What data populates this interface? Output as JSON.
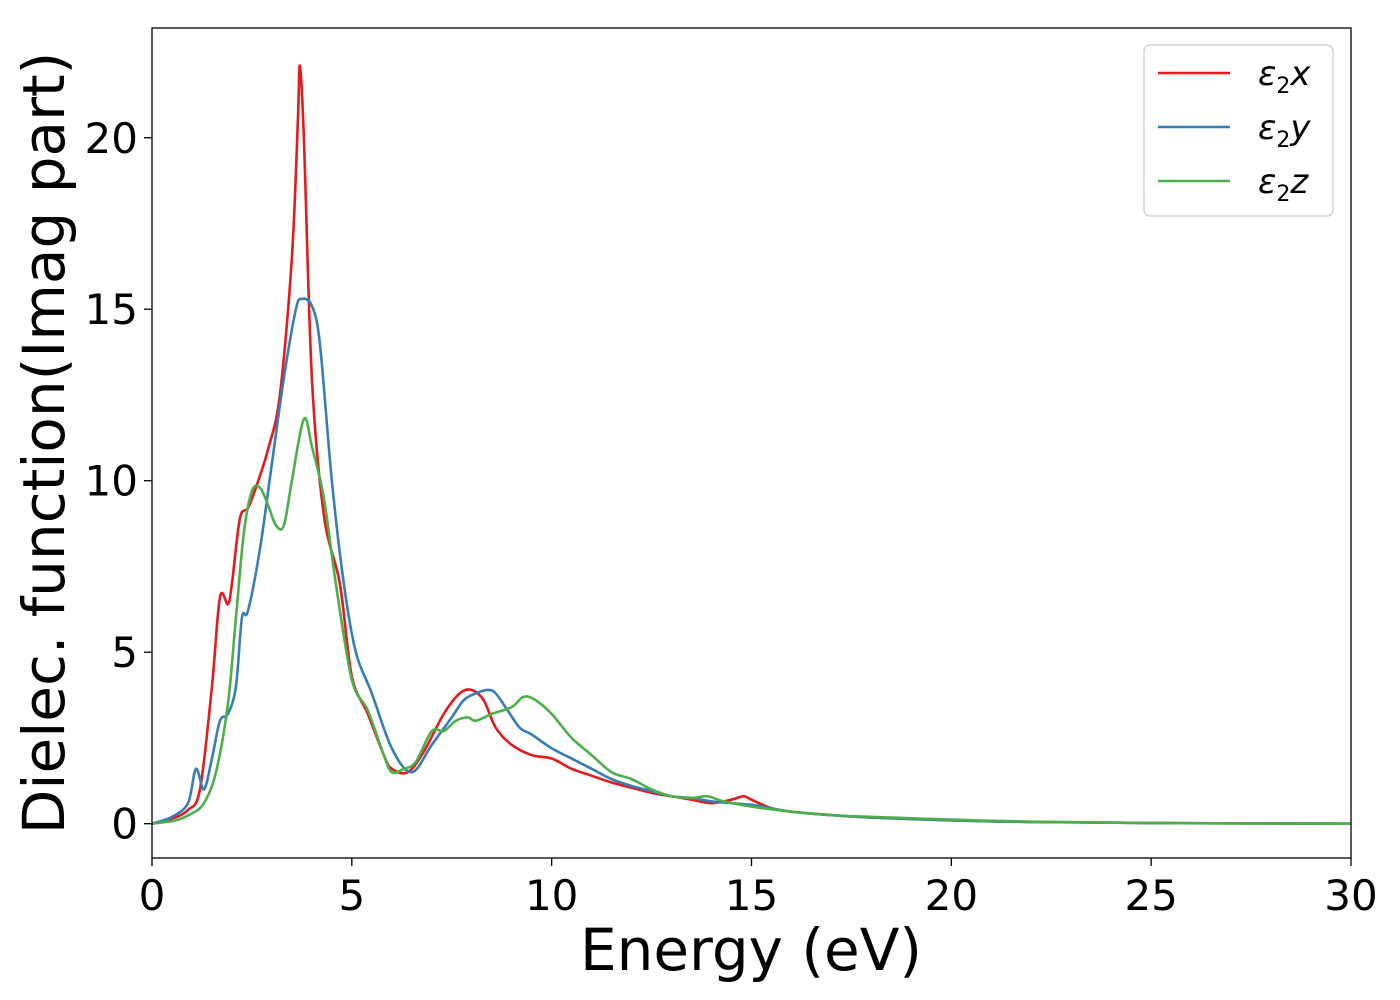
{
  "chart_data": {
    "type": "line",
    "title": "",
    "xlabel": "Energy (eV)",
    "ylabel": "Dielec. function(Imag part)",
    "xlim": [
      0,
      30
    ],
    "ylim": [
      -1,
      23.2
    ],
    "x_ticks": [
      0,
      5,
      10,
      15,
      20,
      25,
      30
    ],
    "y_ticks": [
      0,
      5,
      10,
      15,
      20
    ],
    "grid": false,
    "legend_position": "top-right",
    "series": [
      {
        "name": "ε2x",
        "legend_base": "ε",
        "legend_sub": "2",
        "legend_tail": "x",
        "color": "#e41a1c",
        "x": [
          0,
          0.5,
          0.9,
          1.2,
          1.5,
          1.7,
          1.9,
          2.0,
          2.2,
          2.4,
          2.6,
          2.9,
          3.2,
          3.5,
          3.65,
          3.7,
          3.8,
          4.0,
          4.3,
          4.7,
          5.0,
          5.4,
          5.8,
          6.0,
          6.4,
          6.8,
          7.3,
          7.7,
          8.0,
          8.3,
          8.6,
          9.0,
          9.5,
          10.0,
          10.5,
          11.0,
          11.5,
          12.0,
          12.5,
          13.0,
          13.5,
          14.0,
          14.5,
          14.8,
          15.0,
          15.5,
          16.0,
          17.0,
          18.0,
          20.0,
          22.0,
          25.0,
          30.0
        ],
        "y": [
          0,
          0.15,
          0.4,
          1.0,
          4.0,
          6.6,
          6.4,
          7.0,
          8.9,
          9.2,
          9.8,
          10.9,
          12.5,
          16.5,
          20.5,
          22.1,
          20.0,
          13.0,
          9.0,
          7.0,
          4.3,
          3.2,
          2.0,
          1.6,
          1.5,
          2.1,
          3.2,
          3.8,
          3.9,
          3.6,
          2.8,
          2.3,
          2.0,
          1.9,
          1.6,
          1.4,
          1.2,
          1.05,
          0.9,
          0.8,
          0.7,
          0.6,
          0.7,
          0.8,
          0.7,
          0.45,
          0.35,
          0.25,
          0.18,
          0.1,
          0.05,
          0.02,
          0.0
        ]
      },
      {
        "name": "ε2y",
        "legend_base": "ε",
        "legend_sub": "2",
        "legend_tail": "y",
        "color": "#377eb8",
        "x": [
          0,
          0.5,
          0.9,
          1.1,
          1.3,
          1.5,
          1.7,
          1.9,
          2.1,
          2.25,
          2.4,
          2.7,
          3.0,
          3.3,
          3.6,
          3.75,
          4.0,
          4.2,
          4.5,
          4.8,
          5.1,
          5.5,
          6.0,
          6.5,
          7.0,
          7.5,
          7.8,
          8.1,
          8.4,
          8.6,
          8.9,
          9.2,
          9.5,
          10.0,
          10.5,
          11.0,
          11.5,
          12.0,
          12.5,
          13.0,
          13.5,
          14.0,
          14.5,
          15.0,
          15.5,
          16.0,
          17.0,
          18.0,
          20.0,
          22.0,
          25.0,
          30.0
        ],
        "y": [
          0,
          0.2,
          0.6,
          1.6,
          1.0,
          1.9,
          3.0,
          3.2,
          4.0,
          6.0,
          6.2,
          8.0,
          10.5,
          13.0,
          15.0,
          15.3,
          15.1,
          14.0,
          10.0,
          7.0,
          5.0,
          3.8,
          2.2,
          1.5,
          2.3,
          3.1,
          3.6,
          3.8,
          3.9,
          3.8,
          3.3,
          2.8,
          2.6,
          2.2,
          1.9,
          1.6,
          1.3,
          1.1,
          0.95,
          0.8,
          0.75,
          0.65,
          0.6,
          0.55,
          0.45,
          0.35,
          0.25,
          0.18,
          0.1,
          0.05,
          0.02,
          0.0
        ]
      },
      {
        "name": "ε2z",
        "legend_base": "ε",
        "legend_sub": "2",
        "legend_tail": "z",
        "color": "#4daf4a",
        "x": [
          0,
          0.6,
          1.0,
          1.3,
          1.6,
          1.9,
          2.1,
          2.3,
          2.5,
          2.7,
          2.9,
          3.1,
          3.3,
          3.5,
          3.8,
          4.0,
          4.3,
          4.6,
          5.0,
          5.4,
          5.8,
          6.0,
          6.3,
          6.6,
          7.0,
          7.3,
          7.6,
          7.9,
          8.1,
          8.5,
          9.0,
          9.3,
          9.6,
          10.0,
          10.5,
          11.0,
          11.5,
          12.0,
          12.5,
          13.0,
          13.5,
          13.9,
          14.3,
          15.0,
          16.0,
          17.0,
          18.0,
          20.0,
          22.0,
          25.0,
          30.0
        ],
        "y": [
          0,
          0.1,
          0.3,
          0.6,
          1.5,
          3.5,
          6.0,
          8.5,
          9.7,
          9.8,
          9.3,
          8.7,
          8.7,
          10.0,
          11.8,
          11.0,
          9.5,
          7.0,
          4.2,
          3.3,
          2.0,
          1.5,
          1.6,
          1.8,
          2.7,
          2.7,
          3.0,
          3.1,
          3.0,
          3.2,
          3.4,
          3.7,
          3.6,
          3.2,
          2.5,
          2.0,
          1.5,
          1.3,
          1.0,
          0.8,
          0.75,
          0.8,
          0.65,
          0.5,
          0.35,
          0.25,
          0.2,
          0.12,
          0.06,
          0.02,
          0.0
        ]
      }
    ]
  }
}
